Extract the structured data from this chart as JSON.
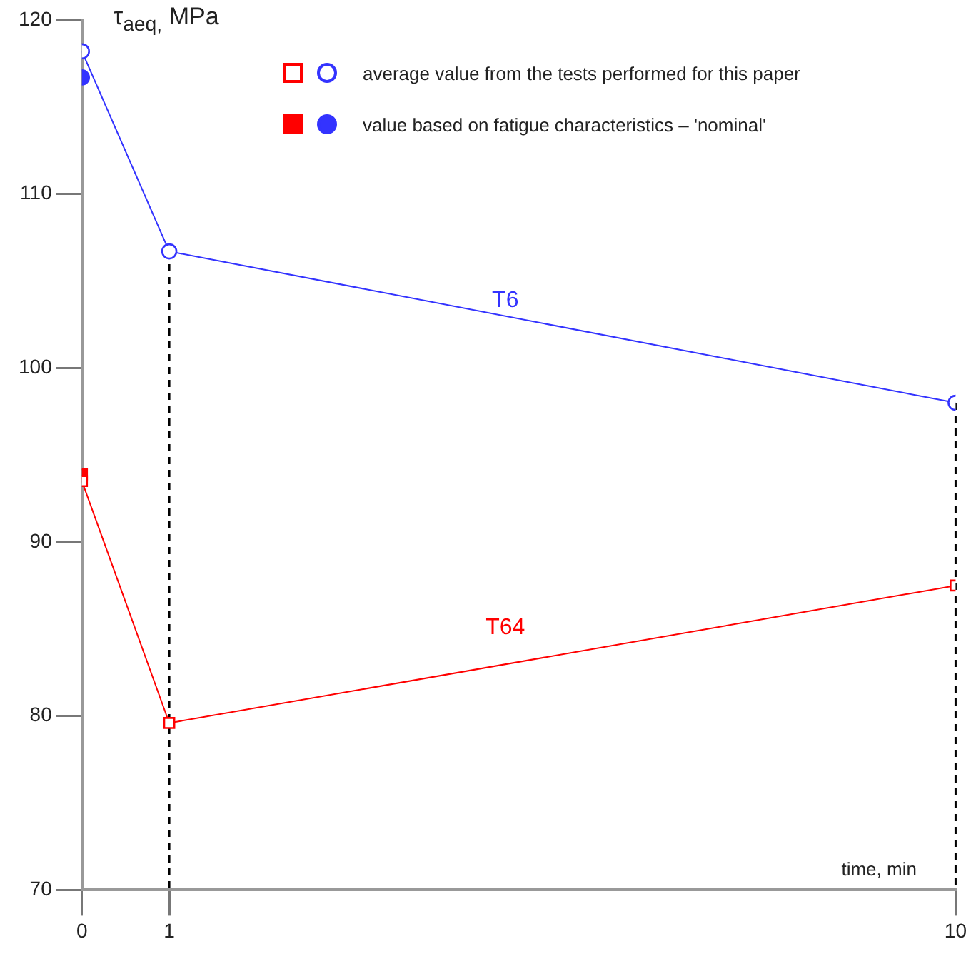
{
  "chart_data": {
    "type": "line",
    "ylabel": "τ$_{aeq,}$ MPa",
    "xlabel": "time, min",
    "xlim": [
      0,
      10
    ],
    "xticks": [
      0,
      1,
      10
    ],
    "ylim": [
      70,
      120
    ],
    "yticks": [
      70,
      80,
      90,
      100,
      110,
      120
    ],
    "grid": false,
    "series": [
      {
        "name": "T6",
        "type": "line",
        "color": "#3333ff",
        "marker": "circle",
        "x": [
          0,
          1,
          10
        ],
        "values": [
          118.2,
          106.7,
          98.0
        ]
      },
      {
        "type": "scatter",
        "color": "#3333ff",
        "marker": "circle",
        "x": [
          0
        ],
        "values": [
          116.7
        ]
      },
      {
        "name": "T64",
        "type": "line",
        "color": "#ff0000",
        "marker": "square",
        "x": [
          0,
          1,
          10
        ],
        "values": [
          93.5,
          79.6,
          87.5
        ]
      },
      {
        "type": "scatter",
        "color": "#ff0000",
        "marker": "square",
        "x": [
          0
        ],
        "values": [
          93.9
        ]
      }
    ],
    "ref_lines": [
      {
        "axis": "x",
        "value": 1,
        "color": "#000000",
        "line_style": "dashed"
      },
      {
        "axis": "x",
        "value": 10,
        "color": "#000000",
        "line_style": "dashed"
      }
    ],
    "annotations": [
      "average value from the tests performed for this paper",
      "value based on fatigue characteristics – 'nominal'"
    ]
  }
}
